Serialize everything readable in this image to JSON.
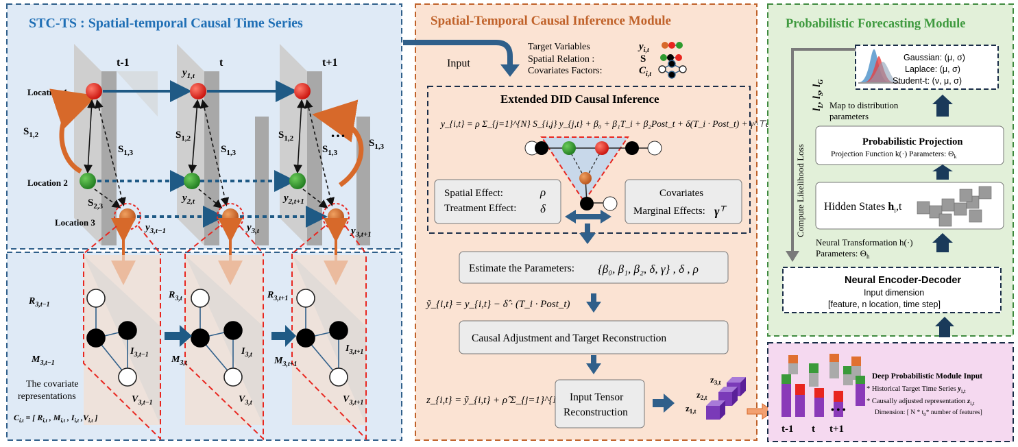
{
  "left": {
    "title": "STC-TS : Spatial-temporal Causal Time Series",
    "time_labels": [
      "t-1",
      "t",
      "t+1"
    ],
    "locations": [
      "Location 1",
      "Location 2",
      "Location 3"
    ],
    "edge_labels": {
      "s12": "S",
      "s12_sub": "1,2",
      "s13": "S",
      "s13_sub": "1,3",
      "s23": "S",
      "s23_sub": "2,3"
    },
    "node_labels": {
      "y1t": "y",
      "y1t_sub": "1,t",
      "y2t": "y",
      "y2t_sub": "2,t",
      "y2t1": "y",
      "y2t1_sub": "2,t+1",
      "y3tm1": "y",
      "y3tm1_sub": "3,t−1",
      "y3t": "y",
      "y3t_sub": "3,t",
      "y3tp1": "y",
      "y3tp1_sub": "3,t+1"
    },
    "ellipsis": "…",
    "cov_nodes": {
      "R": "R",
      "M": "M",
      "I": "I",
      "V": "V",
      "sub_tm1": "3,t−1",
      "sub_t": "3,t",
      "sub_tp1": "3,t+1"
    },
    "cov_text_1": "The covariate",
    "cov_text_2": "representations",
    "cov_formula": "C",
    "cov_formula_sub": "i,t",
    "cov_formula_rest": " = [ R",
    "cov_formula_items": [
      "R",
      "M",
      "I",
      "V"
    ]
  },
  "middle": {
    "title": "Spatial-Temporal Causal Inference Module",
    "input_label": "Input",
    "legend": [
      {
        "label": "Target Variables",
        "symbol": "y",
        "sub": "i,t"
      },
      {
        "label": "Spatial Relation :",
        "symbol": "S",
        "sub": ""
      },
      {
        "label": "Covariates Factors:",
        "symbol": "C",
        "sub": "i,t"
      }
    ],
    "did_title": "Extended DID Causal Inference",
    "did_equation": "y_{i,t} = ρ Σ_{j=1}^{N} S_{i,j} y_{j,t} + β₀ + β₁T_i + β₂Post_t + δ(T_i · Post_t) + γ^⊤c_{i,t} + ε_{i,t}",
    "spatial_effect": "Spatial Effect:",
    "spatial_symbol": "ρ",
    "treatment_effect": "Treatment Effect:",
    "treatment_symbol": "δ",
    "cov_title": "Covariates",
    "cov_marginal": "Marginal Effects:",
    "cov_symbol": "γ",
    "estimate": "Estimate the Parameters:",
    "estimate_params": "{β₀, β₁, β₂, δ, γ} , δ , ρ",
    "adjust_formula": "ỹ_{i,t} = y_{i,t} − δ̂ · (T_i · Post_t)",
    "causal_adjust": "Causal Adjustment and Target Reconstruction",
    "z_formula": "z_{i,t} = ỹ_{i,t} + ρ̂ Σ_{j=1}^{N} S_{i,j} ỹ_{j,t}",
    "input_tensor_1": "Input Tensor",
    "input_tensor_2": "Reconstruction",
    "z_labels": [
      "z",
      "z",
      "z"
    ],
    "z_subs": [
      "3,t",
      "2,t",
      "1,t"
    ]
  },
  "right": {
    "title": "Probabilistic Forecasting Module",
    "dists": [
      "Gaussian: (μ, σ)",
      "Laplace: (μ, σ)",
      "Student-t: (ν, μ, σ)"
    ],
    "losses": "l",
    "map_to_1": "Map to distribution",
    "map_to_2": "parameters",
    "proj_title": "Probabilistic Projection",
    "proj_sub": "Projection Function k(·) Parameters: Θ",
    "proj_sub_k": "k",
    "hidden": "Hidden States",
    "hidden_h": "h",
    "hidden_sub": "i",
    "hidden_t": ",t",
    "neural_1": "Neural Transformation h(·)",
    "neural_2": "Parameters: Θ",
    "neural_2_sub": "h",
    "compute_loss": "Compute Likelihood Loss",
    "encdec_title": "Neural Encoder-Decoder",
    "encdec_l1": "Input dimension",
    "encdec_l2": "[feature, n location, time step]",
    "deep_title": "Deep Probabilistic Module Input",
    "deep_l1": "* Historical Target Time Series ",
    "deep_l2": "* Causally adjusted representation ",
    "deep_l3": "Dimension: [ N * t",
    "deep_l3b": "0",
    "deep_l3c": "* number of features]",
    "time_labels": [
      "t-1",
      "t",
      "t+1"
    ],
    "ellipsis": "• • •"
  },
  "colors": {
    "left_bg": "#dfeaf6",
    "mid_bg": "#fbe3d3",
    "right_bg": "#e2f0d9",
    "pink_bg": "#f5d9f0",
    "red": "#e8261f",
    "green": "#2e9a2e",
    "orange": "#d7692a",
    "arrow": "#1f4e79"
  }
}
